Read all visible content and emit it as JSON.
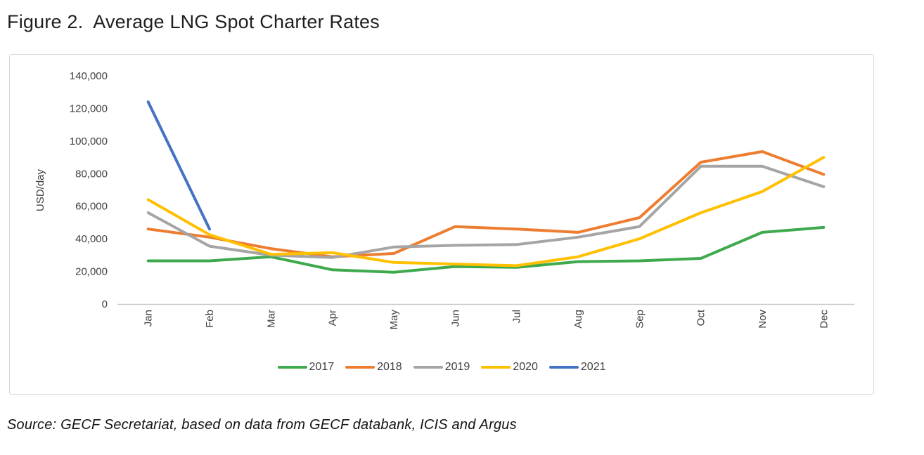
{
  "figure": {
    "title": "Figure 2.  Average LNG Spot Charter Rates",
    "source": "Source: GECF Secretariat, based on data from GECF databank, ICIS and Argus"
  },
  "chart_data": {
    "type": "line",
    "title": "Figure 2. Average LNG Spot Charter Rates",
    "xlabel": "",
    "ylabel": "USD/day",
    "ylim": [
      0,
      140000
    ],
    "y_tick_interval": 20000,
    "y_tick_labels": [
      "0",
      "20,000",
      "40,000",
      "60,000",
      "80,000",
      "100,000",
      "120,000",
      "140,000"
    ],
    "grid": false,
    "legend_position": "bottom",
    "categories": [
      "Jan",
      "Feb",
      "Mar",
      "Apr",
      "May",
      "Jun",
      "Jul",
      "Aug",
      "Sep",
      "Oct",
      "Nov",
      "Dec"
    ],
    "series": [
      {
        "name": "2017",
        "color": "#3EA94D",
        "values": [
          26500,
          26500,
          29000,
          21000,
          19500,
          23000,
          22500,
          26000,
          26500,
          28000,
          44000,
          47000
        ]
      },
      {
        "name": "2018",
        "color": "#ED7D31",
        "values": [
          46000,
          41000,
          34000,
          29000,
          31000,
          47500,
          46000,
          44000,
          53000,
          87000,
          93500,
          79500
        ]
      },
      {
        "name": "2019",
        "color": "#A5A5A5",
        "values": [
          56000,
          35500,
          30000,
          28500,
          35000,
          36000,
          36500,
          41000,
          47500,
          84500,
          84500,
          72000
        ]
      },
      {
        "name": "2020",
        "color": "#FFC000",
        "values": [
          64000,
          42500,
          30500,
          31500,
          25500,
          24500,
          23500,
          29000,
          40000,
          56000,
          69000,
          90000
        ]
      },
      {
        "name": "2021",
        "color": "#4472C4",
        "values": [
          124000,
          46000,
          null,
          null,
          null,
          null,
          null,
          null,
          null,
          null,
          null,
          null
        ]
      }
    ]
  }
}
